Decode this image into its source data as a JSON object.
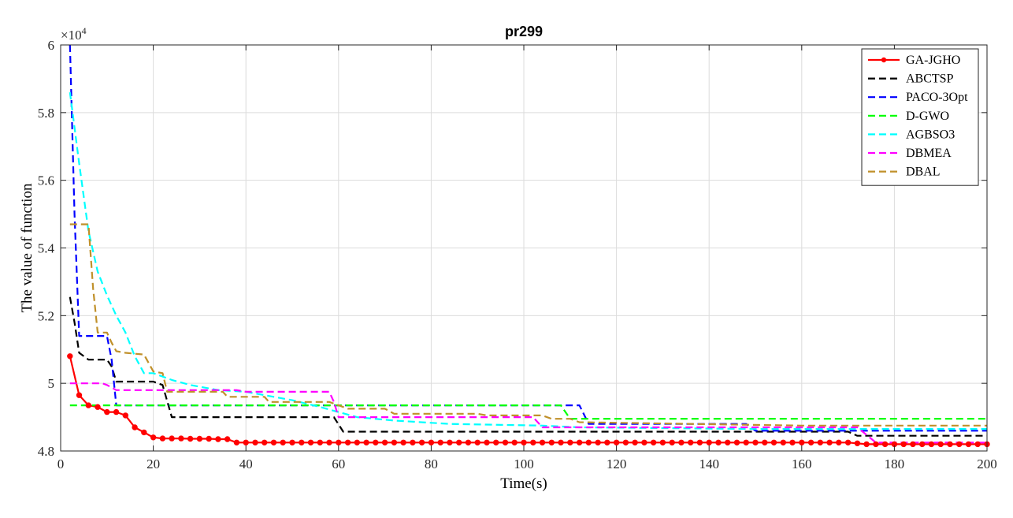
{
  "chart_data": {
    "type": "line",
    "title": "pr299",
    "xlabel": "Time(s)",
    "ylabel": "The value of  function",
    "y_exponent_label": "×10",
    "y_exponent_power": "4",
    "xlim": [
      0,
      200
    ],
    "ylim": [
      48000,
      60000
    ],
    "xticks": [
      0,
      20,
      40,
      60,
      80,
      100,
      120,
      140,
      160,
      180,
      200
    ],
    "yticks": [
      48000,
      50000,
      52000,
      54000,
      56000,
      58000,
      60000
    ],
    "ytick_labels": [
      "4.8",
      "5",
      "5.2",
      "5.4",
      "5.6",
      "5.8",
      "6"
    ],
    "grid": true,
    "legend_position": "top-right",
    "series": [
      {
        "name": "GA-JGHO",
        "color": "#ff0000",
        "style": "solid-markers",
        "x": [
          2,
          4,
          6,
          8,
          10,
          12,
          14,
          16,
          18,
          20,
          22,
          24,
          26,
          28,
          30,
          32,
          34,
          36,
          38,
          40,
          60,
          100,
          170,
          174,
          200
        ],
        "y": [
          50800,
          49650,
          49350,
          49300,
          49150,
          49150,
          49050,
          48700,
          48550,
          48400,
          48370,
          48370,
          48370,
          48360,
          48360,
          48360,
          48350,
          48350,
          48250,
          48250,
          48250,
          48250,
          48250,
          48200,
          48200
        ]
      },
      {
        "name": "ABCTSP",
        "color": "#000000",
        "style": "dashed",
        "x": [
          2,
          3,
          4,
          6,
          10,
          11,
          12,
          20,
          22,
          24,
          59,
          61,
          170,
          172,
          200
        ],
        "y": [
          52550,
          51800,
          50900,
          50700,
          50700,
          50500,
          50050,
          50050,
          49950,
          49000,
          49000,
          48570,
          48570,
          48450,
          48450
        ]
      },
      {
        "name": "PACO-3Opt",
        "color": "#0000ff",
        "style": "dashed",
        "x": [
          2,
          3,
          4,
          10,
          11,
          12,
          112,
          114,
          148,
          150,
          200
        ],
        "y": [
          60000,
          55000,
          51400,
          51400,
          50700,
          49350,
          49350,
          48800,
          48800,
          48600,
          48600
        ]
      },
      {
        "name": "D-GWO",
        "color": "#00ff00",
        "style": "dashed",
        "x": [
          2,
          108,
          110,
          200
        ],
        "y": [
          49350,
          49350,
          48950,
          48950
        ]
      },
      {
        "name": "AGBSO3",
        "color": "#00ffff",
        "style": "dashed",
        "x": [
          2,
          4,
          6,
          8,
          10,
          12,
          14,
          16,
          18,
          20,
          22,
          24,
          28,
          34,
          40,
          50,
          56,
          64,
          72,
          84,
          104,
          112,
          150,
          200
        ],
        "y": [
          58600,
          56500,
          54500,
          53300,
          52600,
          52000,
          51500,
          50800,
          50300,
          50300,
          50200,
          50100,
          49950,
          49800,
          49750,
          49500,
          49300,
          49000,
          48900,
          48800,
          48750,
          48700,
          48650,
          48650
        ]
      },
      {
        "name": "DBMEA",
        "color": "#ff00ff",
        "style": "dashed",
        "x": [
          2,
          9,
          10,
          12,
          38,
          40,
          58,
          59,
          60,
          102,
          104,
          172,
          176,
          200
        ],
        "y": [
          50000,
          50000,
          49950,
          49800,
          49800,
          49750,
          49750,
          49450,
          49000,
          49000,
          48700,
          48700,
          48250,
          48250
        ]
      },
      {
        "name": "DBAL",
        "color": "#c0902a",
        "style": "dashed",
        "x": [
          2,
          6,
          7,
          8,
          10,
          11,
          12,
          14,
          18,
          20,
          22,
          23,
          35,
          36,
          44,
          45,
          58,
          61,
          62,
          70,
          72,
          90,
          92,
          104,
          106,
          110,
          112,
          160,
          200
        ],
        "y": [
          54700,
          54700,
          52800,
          51500,
          51500,
          51200,
          50950,
          50900,
          50850,
          50350,
          50300,
          49750,
          49750,
          49600,
          49600,
          49450,
          49450,
          49300,
          49250,
          49250,
          49100,
          49100,
          49050,
          49050,
          48950,
          48950,
          48850,
          48750,
          48750
        ]
      }
    ]
  }
}
